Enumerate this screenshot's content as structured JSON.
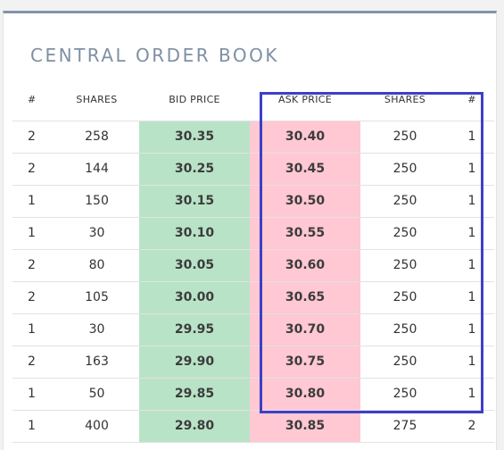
{
  "title": "CENTRAL ORDER BOOK",
  "columns": [
    "#",
    "SHARES",
    "BID PRICE",
    "ASK PRICE",
    "SHARES",
    "#"
  ],
  "rows": [
    [
      "2",
      "258",
      "30.35",
      "30.40",
      "250",
      "1"
    ],
    [
      "2",
      "144",
      "30.25",
      "30.45",
      "250",
      "1"
    ],
    [
      "1",
      "150",
      "30.15",
      "30.50",
      "250",
      "1"
    ],
    [
      "1",
      "30",
      "30.10",
      "30.55",
      "250",
      "1"
    ],
    [
      "2",
      "80",
      "30.05",
      "30.60",
      "250",
      "1"
    ],
    [
      "2",
      "105",
      "30.00",
      "30.65",
      "250",
      "1"
    ],
    [
      "1",
      "30",
      "29.95",
      "30.70",
      "250",
      "1"
    ],
    [
      "2",
      "163",
      "29.90",
      "30.75",
      "250",
      "1"
    ],
    [
      "1",
      "50",
      "29.85",
      "30.80",
      "250",
      "1"
    ],
    [
      "1",
      "400",
      "29.80",
      "30.85",
      "275",
      "2"
    ]
  ],
  "colors": {
    "bid_bg": "#b9e3c7",
    "ask_bg": "#ffc8d3",
    "highlight_border": "#3d3fc7",
    "title_color": "#7f8fa3",
    "top_bar": "#8294a8"
  }
}
